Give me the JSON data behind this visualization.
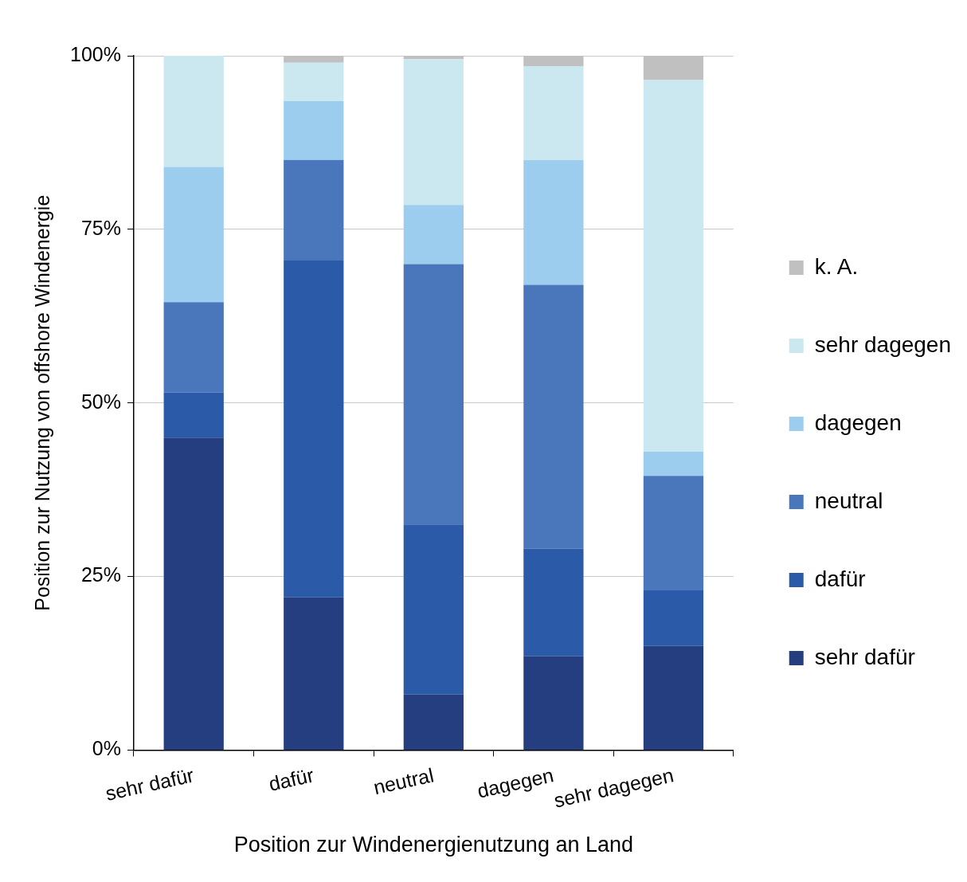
{
  "chart_data": {
    "type": "bar",
    "stacked": true,
    "xlabel": "Position zur Windenergienutzung an Land",
    "ylabel": "Position zur Nutzung von offshore Windenergie",
    "categories": [
      "sehr dafür",
      "dafür",
      "neutral",
      "dagegen",
      "sehr dagegen"
    ],
    "series": [
      {
        "name": "sehr dafür",
        "color": "#253e80",
        "values": [
          45,
          22,
          8,
          13.5,
          15
        ]
      },
      {
        "name": "dafür",
        "color": "#2a5aa8",
        "values": [
          6.5,
          48.5,
          24.5,
          15.5,
          8
        ]
      },
      {
        "name": "neutral",
        "color": "#4a76bc",
        "values": [
          13,
          14.5,
          37.5,
          38,
          16.5
        ]
      },
      {
        "name": "dagegen",
        "color": "#9ccdee",
        "values": [
          19.5,
          8.5,
          8.5,
          18,
          3.5
        ]
      },
      {
        "name": "sehr dagegen",
        "color": "#cbe8f1",
        "values": [
          16,
          5.5,
          21,
          13.5,
          53.5
        ]
      },
      {
        "name": "k. A.",
        "color": "#c0c0c0",
        "values": [
          0,
          1,
          0.5,
          1.5,
          3.5
        ]
      }
    ],
    "ylim": [
      0,
      100
    ],
    "yticks": [
      {
        "value": 0,
        "label": "0%"
      },
      {
        "value": 25,
        "label": "25%"
      },
      {
        "value": 50,
        "label": "50%"
      },
      {
        "value": 75,
        "label": "75%"
      },
      {
        "value": 100,
        "label": "100%"
      }
    ],
    "grid": "y",
    "legend": "right"
  }
}
